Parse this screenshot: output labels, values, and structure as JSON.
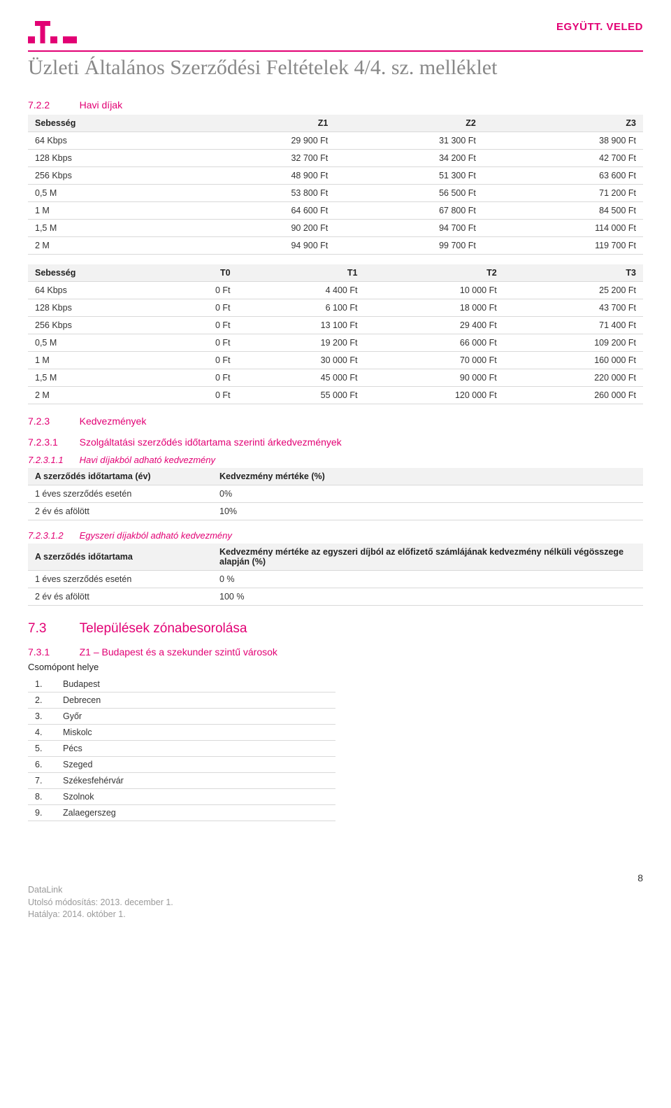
{
  "header": {
    "slogan": "EGYÜTT. VELED",
    "logo_color": "#e20074"
  },
  "title": "Üzleti Általános Szerződési Feltételek 4/4. sz. melléklet",
  "accent_color": "#e20074",
  "text_color": "#333333",
  "muted_color": "#888888",
  "border_color": "#d9d9d9",
  "header_bg": "#f2f2f2",
  "sections": {
    "s722": {
      "num": "7.2.2",
      "label": "Havi díjak"
    },
    "s723": {
      "num": "7.2.3",
      "label": "Kedvezmények"
    },
    "s7231": {
      "num": "7.2.3.1",
      "label": "Szolgáltatási szerződés időtartama szerinti árkedvezmények"
    },
    "s72311": {
      "num": "7.2.3.1.1",
      "label": "Havi díjakból adható kedvezmény"
    },
    "s72312": {
      "num": "7.2.3.1.2",
      "label": "Egyszeri díjakból adható kedvezmény"
    },
    "s73": {
      "num": "7.3",
      "label": "Települések zónabesorolása"
    },
    "s731": {
      "num": "7.3.1",
      "label": "Z1 – Budapest és a szekunder szintű városok"
    }
  },
  "table_z": {
    "columns": [
      "Sebesség",
      "Z1",
      "Z2",
      "Z3"
    ],
    "rows": [
      [
        "64 Kbps",
        "29 900 Ft",
        "31 300 Ft",
        "38 900 Ft"
      ],
      [
        "128 Kbps",
        "32 700 Ft",
        "34 200 Ft",
        "42 700 Ft"
      ],
      [
        "256 Kbps",
        "48 900 Ft",
        "51 300 Ft",
        "63 600 Ft"
      ],
      [
        "0,5 M",
        "53 800 Ft",
        "56 500 Ft",
        "71 200 Ft"
      ],
      [
        "1 M",
        "64 600 Ft",
        "67 800 Ft",
        "84 500 Ft"
      ],
      [
        "1,5 M",
        "90 200 Ft",
        "94 700 Ft",
        "114 000 Ft"
      ],
      [
        "2 M",
        "94 900 Ft",
        "99 700 Ft",
        "119 700 Ft"
      ]
    ]
  },
  "table_t": {
    "columns": [
      "Sebesség",
      "T0",
      "T1",
      "T2",
      "T3"
    ],
    "rows": [
      [
        "64 Kbps",
        "0 Ft",
        "4 400 Ft",
        "10 000 Ft",
        "25 200 Ft"
      ],
      [
        "128 Kbps",
        "0 Ft",
        "6 100 Ft",
        "18 000 Ft",
        "43 700 Ft"
      ],
      [
        "256 Kbps",
        "0 Ft",
        "13 100 Ft",
        "29 400 Ft",
        "71 400 Ft"
      ],
      [
        "0,5 M",
        "0 Ft",
        "19 200 Ft",
        "66 000 Ft",
        "109 200 Ft"
      ],
      [
        "1 M",
        "0 Ft",
        "30 000 Ft",
        "70 000 Ft",
        "160 000 Ft"
      ],
      [
        "1,5 M",
        "0 Ft",
        "45 000 Ft",
        "90 000 Ft",
        "220 000 Ft"
      ],
      [
        "2 M",
        "0 Ft",
        "55 000 Ft",
        "120 000 Ft",
        "260 000 Ft"
      ]
    ]
  },
  "discount_monthly": {
    "columns": [
      "A szerződés időtartama (év)",
      "Kedvezmény mértéke (%)"
    ],
    "rows": [
      [
        "1 éves szerződés esetén",
        "0%"
      ],
      [
        "2 év és afölött",
        "10%"
      ]
    ]
  },
  "discount_onetime": {
    "columns": [
      "A szerződés időtartama",
      "Kedvezmény mértéke az egyszeri díjból az előfizető számlájának kedvezmény nélküli végösszege alapján (%)"
    ],
    "rows": [
      [
        "1 éves szerződés esetén",
        "0 %"
      ],
      [
        "2 év és afölött",
        "100 %"
      ]
    ]
  },
  "csomopont_label": "Csomópont helye",
  "cities": {
    "rows": [
      [
        "1.",
        "Budapest"
      ],
      [
        "2.",
        "Debrecen"
      ],
      [
        "3.",
        "Győr"
      ],
      [
        "4.",
        "Miskolc"
      ],
      [
        "5.",
        "Pécs"
      ],
      [
        "6.",
        "Szeged"
      ],
      [
        "7.",
        "Székesfehérvár"
      ],
      [
        "8.",
        "Szolnok"
      ],
      [
        "9.",
        "Zalaegerszeg"
      ]
    ]
  },
  "footer": {
    "line1": "DataLink",
    "line2": "Utolsó módosítás: 2013. december 1.",
    "line3": "Hatálya: 2014. október 1.",
    "page": "8"
  }
}
